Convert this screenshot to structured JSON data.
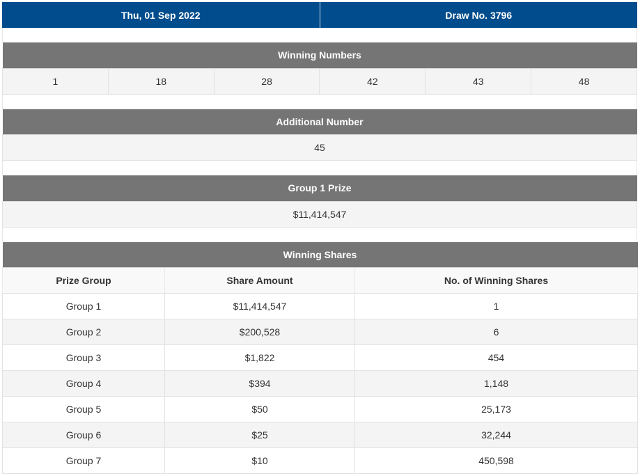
{
  "draw": {
    "date": "Thu, 01 Sep 2022",
    "number_label": "Draw No. 3796"
  },
  "winning_numbers": {
    "title": "Winning Numbers",
    "numbers": [
      "1",
      "18",
      "28",
      "42",
      "43",
      "48"
    ]
  },
  "additional_number": {
    "title": "Additional Number",
    "value": "45"
  },
  "group1_prize": {
    "title": "Group 1 Prize",
    "value": "$11,414,547"
  },
  "winning_shares": {
    "title": "Winning Shares",
    "headers": [
      "Prize Group",
      "Share Amount",
      "No. of Winning Shares"
    ],
    "rows": [
      [
        "Group 1",
        "$11,414,547",
        "1"
      ],
      [
        "Group 2",
        "$200,528",
        "6"
      ],
      [
        "Group 3",
        "$1,822",
        "454"
      ],
      [
        "Group 4",
        "$394",
        "1,148"
      ],
      [
        "Group 5",
        "$50",
        "25,173"
      ],
      [
        "Group 6",
        "$25",
        "32,244"
      ],
      [
        "Group 7",
        "$10",
        "450,598"
      ]
    ]
  },
  "colors": {
    "header_blue": "#004c8c",
    "section_gray": "#757575",
    "row_alt": "#f4f4f4"
  }
}
